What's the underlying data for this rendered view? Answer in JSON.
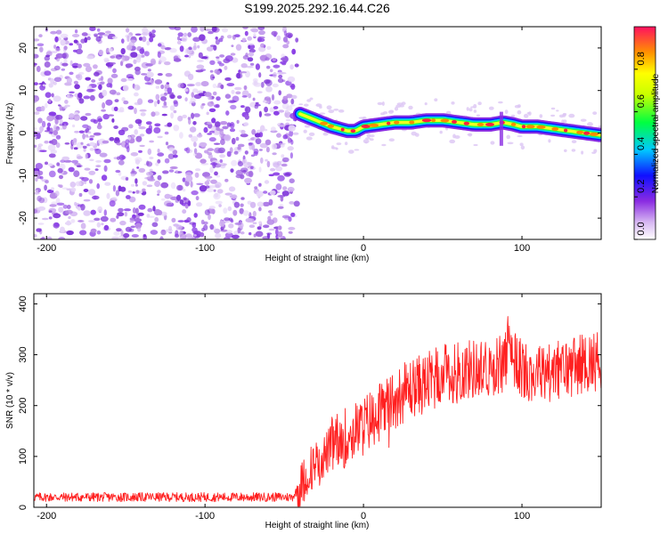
{
  "title": "S199.2025.292.16.44.C26",
  "chart_data": [
    {
      "type": "heatmap",
      "name": "spectrogram",
      "xlabel": "Height of straight line (km)",
      "ylabel": "Frequency (Hz)",
      "xlim": [
        -208,
        150
      ],
      "ylim": [
        -25,
        25
      ],
      "xticks": [
        -200,
        -100,
        0,
        100
      ],
      "yticks": [
        -20,
        -10,
        0,
        10,
        20
      ],
      "noise_region_x": [
        -208,
        -42
      ],
      "signal_track": {
        "x": [
          -40,
          -30,
          -20,
          -10,
          -5,
          0,
          10,
          20,
          30,
          40,
          50,
          60,
          70,
          80,
          88,
          95,
          100,
          110,
          120,
          130,
          140,
          150
        ],
        "freq": [
          4.5,
          3.0,
          1.5,
          0.5,
          0.5,
          1.5,
          2.0,
          2.5,
          2.5,
          3.0,
          3.0,
          2.5,
          2.0,
          2.0,
          2.5,
          2.0,
          1.5,
          1.5,
          1.0,
          0.5,
          0.0,
          -0.5
        ]
      },
      "colorbar": {
        "label": "Normalized spectral amplitude",
        "range": [
          0,
          1
        ],
        "ticks": [
          "0.0",
          "0.2",
          "0.4",
          "0.6",
          "0.8"
        ]
      }
    },
    {
      "type": "line",
      "name": "snr",
      "xlabel": "Height of straight line (km)",
      "ylabel": "SNR (10 * v/v)",
      "xlim": [
        -208,
        150
      ],
      "ylim": [
        0,
        420
      ],
      "xticks": [
        -200,
        -100,
        0,
        100
      ],
      "yticks": [
        0,
        100,
        200,
        300,
        400
      ],
      "color": "#ff2020",
      "series": [
        {
          "name": "SNR",
          "x": [
            -208,
            -180,
            -150,
            -120,
            -100,
            -80,
            -60,
            -45,
            -40,
            -35,
            -30,
            -25,
            -20,
            -10,
            0,
            10,
            20,
            30,
            40,
            50,
            60,
            70,
            80,
            88,
            92,
            95,
            100,
            110,
            120,
            130,
            140,
            150
          ],
          "y": [
            20,
            20,
            20,
            20,
            20,
            20,
            20,
            20,
            40,
            70,
            90,
            100,
            120,
            140,
            160,
            190,
            215,
            235,
            245,
            260,
            268,
            272,
            275,
            285,
            300,
            290,
            270,
            265,
            265,
            275,
            285,
            290
          ]
        }
      ]
    }
  ]
}
